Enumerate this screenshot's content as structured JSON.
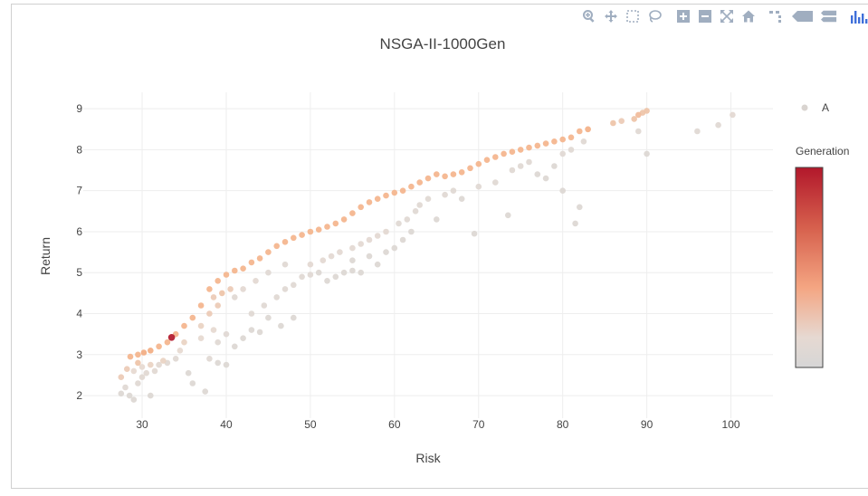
{
  "modebar": {
    "buttons": [
      "zoom-icon",
      "pan-icon",
      "box-select-icon",
      "lasso-select-icon",
      "zoom-in-icon",
      "zoom-out-icon",
      "autoscale-icon",
      "reset-axes-icon",
      "spike-lines-icon",
      "hover-closest-icon",
      "hover-compare-icon",
      "plotly-logo-icon"
    ],
    "color": "#a0aec0"
  },
  "chart_data": {
    "type": "scatter",
    "title": "NSGA-II-1000Gen",
    "xlabel": "Risk",
    "ylabel": "Return",
    "xlim": [
      23,
      105
    ],
    "ylim": [
      1.45,
      9.4
    ],
    "xticks": [
      30,
      40,
      50,
      60,
      70,
      80,
      90,
      100
    ],
    "yticks": [
      2,
      3,
      4,
      5,
      6,
      7,
      8,
      9
    ],
    "grid": true,
    "legend": {
      "entries": [
        "A"
      ],
      "placement": "top-right",
      "marker_color": "#d9d4d0"
    },
    "colorbar": {
      "title": "Generation",
      "colors": [
        "#b2182b",
        "#d6604d",
        "#f4a582",
        "#e6d9d2",
        "#d6d6d6"
      ]
    },
    "series": [
      {
        "name": "A",
        "frontier_hi": [
          [
            28.6,
            2.95,
            0.45
          ],
          [
            29.5,
            3.0,
            0.45
          ],
          [
            30.2,
            3.05,
            0.5
          ],
          [
            31.0,
            3.1,
            0.5
          ],
          [
            32.0,
            3.2,
            0.45
          ],
          [
            33.0,
            3.3,
            0.45
          ],
          [
            34.0,
            3.5,
            0.45
          ],
          [
            35.0,
            3.7,
            0.45
          ],
          [
            36.0,
            3.9,
            0.45
          ],
          [
            37.0,
            4.2,
            0.45
          ],
          [
            38.0,
            4.6,
            0.45
          ],
          [
            39.0,
            4.8,
            0.45
          ],
          [
            40.0,
            4.95,
            0.45
          ],
          [
            41.0,
            5.05,
            0.45
          ],
          [
            42.0,
            5.1,
            0.45
          ],
          [
            43.0,
            5.25,
            0.45
          ],
          [
            44.0,
            5.35,
            0.45
          ],
          [
            45.0,
            5.5,
            0.45
          ],
          [
            46.0,
            5.65,
            0.45
          ],
          [
            47.0,
            5.75,
            0.45
          ],
          [
            48.0,
            5.85,
            0.45
          ],
          [
            49.0,
            5.92,
            0.45
          ],
          [
            50.0,
            6.0,
            0.45
          ],
          [
            51.0,
            6.05,
            0.45
          ],
          [
            52.0,
            6.12,
            0.45
          ],
          [
            53.0,
            6.2,
            0.45
          ],
          [
            54.0,
            6.3,
            0.45
          ],
          [
            55.0,
            6.45,
            0.45
          ],
          [
            56.0,
            6.6,
            0.45
          ],
          [
            57.0,
            6.72,
            0.45
          ],
          [
            58.0,
            6.8,
            0.45
          ],
          [
            59.0,
            6.88,
            0.45
          ],
          [
            60.0,
            6.95,
            0.45
          ],
          [
            61.0,
            7.0,
            0.45
          ],
          [
            62.0,
            7.1,
            0.45
          ],
          [
            63.0,
            7.2,
            0.45
          ],
          [
            64.0,
            7.3,
            0.45
          ],
          [
            65.0,
            7.4,
            0.45
          ],
          [
            66.0,
            7.35,
            0.45
          ],
          [
            67.0,
            7.4,
            0.45
          ],
          [
            68.0,
            7.45,
            0.45
          ],
          [
            69.0,
            7.55,
            0.45
          ],
          [
            70.0,
            7.65,
            0.45
          ],
          [
            71.0,
            7.75,
            0.45
          ],
          [
            72.0,
            7.82,
            0.45
          ],
          [
            73.0,
            7.9,
            0.45
          ],
          [
            74.0,
            7.95,
            0.45
          ],
          [
            75.0,
            8.0,
            0.45
          ],
          [
            76.0,
            8.05,
            0.45
          ],
          [
            77.0,
            8.1,
            0.45
          ],
          [
            78.0,
            8.15,
            0.45
          ],
          [
            79.0,
            8.2,
            0.45
          ],
          [
            80.0,
            8.25,
            0.45
          ],
          [
            81.0,
            8.3,
            0.45
          ],
          [
            82.0,
            8.45,
            0.45
          ],
          [
            83.0,
            8.5,
            0.45
          ]
        ],
        "points": [
          [
            27.5,
            2.05,
            0.05
          ],
          [
            28.5,
            2.0,
            0.05
          ],
          [
            29.0,
            1.9,
            0.05
          ],
          [
            31.0,
            2.0,
            0.05
          ],
          [
            28.0,
            2.2,
            0.1
          ],
          [
            29.5,
            2.3,
            0.1
          ],
          [
            30.0,
            2.45,
            0.12
          ],
          [
            30.5,
            2.55,
            0.12
          ],
          [
            31.5,
            2.6,
            0.12
          ],
          [
            32.0,
            2.75,
            0.12
          ],
          [
            33.0,
            2.8,
            0.1
          ],
          [
            34.0,
            2.9,
            0.1
          ],
          [
            29.0,
            2.6,
            0.2
          ],
          [
            30.0,
            2.7,
            0.2
          ],
          [
            31.0,
            2.75,
            0.25
          ],
          [
            32.5,
            2.85,
            0.25
          ],
          [
            27.5,
            2.45,
            0.3
          ],
          [
            28.2,
            2.65,
            0.3
          ],
          [
            29.5,
            2.8,
            0.35
          ],
          [
            33.5,
            3.42,
            1.0
          ],
          [
            34.5,
            3.1,
            0.2
          ],
          [
            35.0,
            3.3,
            0.25
          ],
          [
            35.5,
            2.55,
            0.05
          ],
          [
            36.0,
            2.3,
            0.05
          ],
          [
            37.5,
            2.1,
            0.05
          ],
          [
            38.0,
            2.9,
            0.1
          ],
          [
            39.0,
            2.8,
            0.05
          ],
          [
            40.0,
            2.75,
            0.05
          ],
          [
            37.0,
            3.4,
            0.2
          ],
          [
            38.5,
            3.6,
            0.2
          ],
          [
            37.0,
            3.7,
            0.25
          ],
          [
            38.0,
            4.0,
            0.3
          ],
          [
            39.0,
            4.2,
            0.3
          ],
          [
            38.5,
            4.4,
            0.3
          ],
          [
            39.5,
            4.5,
            0.35
          ],
          [
            40.5,
            4.6,
            0.3
          ],
          [
            39.0,
            3.3,
            0.1
          ],
          [
            40.0,
            3.5,
            0.1
          ],
          [
            41.0,
            3.2,
            0.05
          ],
          [
            42.0,
            3.4,
            0.05
          ],
          [
            43.0,
            3.6,
            0.05
          ],
          [
            44.0,
            3.55,
            0.05
          ],
          [
            43.0,
            4.0,
            0.1
          ],
          [
            44.5,
            4.2,
            0.1
          ],
          [
            46.0,
            4.4,
            0.1
          ],
          [
            47.0,
            4.6,
            0.1
          ],
          [
            45.0,
            3.9,
            0.05
          ],
          [
            46.5,
            3.7,
            0.05
          ],
          [
            48.0,
            3.9,
            0.05
          ],
          [
            48.0,
            4.7,
            0.1
          ],
          [
            49.0,
            4.9,
            0.1
          ],
          [
            50.0,
            4.95,
            0.1
          ],
          [
            51.0,
            5.0,
            0.05
          ],
          [
            52.0,
            4.8,
            0.05
          ],
          [
            53.0,
            4.9,
            0.05
          ],
          [
            54.0,
            5.0,
            0.05
          ],
          [
            55.0,
            5.05,
            0.05
          ],
          [
            56.0,
            5.0,
            0.05
          ],
          [
            50.0,
            5.2,
            0.15
          ],
          [
            51.5,
            5.3,
            0.15
          ],
          [
            52.5,
            5.4,
            0.15
          ],
          [
            53.5,
            5.5,
            0.15
          ],
          [
            55.0,
            5.6,
            0.15
          ],
          [
            56.0,
            5.7,
            0.15
          ],
          [
            57.0,
            5.8,
            0.15
          ],
          [
            58.0,
            5.9,
            0.15
          ],
          [
            59.0,
            6.0,
            0.15
          ],
          [
            55.0,
            5.3,
            0.05
          ],
          [
            57.0,
            5.4,
            0.05
          ],
          [
            58.0,
            5.2,
            0.05
          ],
          [
            59.0,
            5.5,
            0.05
          ],
          [
            60.0,
            5.6,
            0.05
          ],
          [
            61.0,
            5.8,
            0.05
          ],
          [
            62.0,
            6.0,
            0.05
          ],
          [
            60.5,
            6.2,
            0.1
          ],
          [
            61.5,
            6.3,
            0.1
          ],
          [
            62.5,
            6.5,
            0.1
          ],
          [
            63.0,
            6.65,
            0.1
          ],
          [
            64.0,
            6.8,
            0.1
          ],
          [
            65.0,
            6.3,
            0.05
          ],
          [
            66.0,
            6.9,
            0.1
          ],
          [
            67.0,
            7.0,
            0.1
          ],
          [
            68.0,
            6.8,
            0.05
          ],
          [
            69.5,
            5.95,
            0.05
          ],
          [
            70.0,
            7.1,
            0.1
          ],
          [
            72.0,
            7.2,
            0.1
          ],
          [
            73.5,
            6.4,
            0.05
          ],
          [
            74.0,
            7.5,
            0.1
          ],
          [
            75.0,
            7.6,
            0.1
          ],
          [
            76.0,
            7.7,
            0.1
          ],
          [
            77.0,
            7.4,
            0.05
          ],
          [
            78.0,
            7.3,
            0.05
          ],
          [
            79.0,
            7.6,
            0.05
          ],
          [
            80.0,
            7.0,
            0.05
          ],
          [
            81.5,
            6.2,
            0.05
          ],
          [
            82.0,
            6.6,
            0.05
          ],
          [
            80.0,
            7.9,
            0.1
          ],
          [
            81.0,
            8.0,
            0.1
          ],
          [
            82.5,
            8.2,
            0.1
          ],
          [
            83.0,
            8.5,
            0.3
          ],
          [
            86.0,
            8.65,
            0.35
          ],
          [
            87.0,
            8.7,
            0.3
          ],
          [
            88.5,
            8.75,
            0.35
          ],
          [
            89.0,
            8.85,
            0.4
          ],
          [
            89.5,
            8.9,
            0.35
          ],
          [
            90.0,
            8.95,
            0.35
          ],
          [
            89.0,
            8.45,
            0.1
          ],
          [
            90.0,
            7.9,
            0.05
          ],
          [
            96.0,
            8.45,
            0.1
          ],
          [
            98.5,
            8.6,
            0.1
          ],
          [
            100.2,
            8.85,
            0.15
          ],
          [
            47.0,
            5.2,
            0.1
          ],
          [
            45.0,
            5.0,
            0.1
          ],
          [
            43.5,
            4.8,
            0.15
          ],
          [
            42.0,
            4.6,
            0.15
          ],
          [
            41.0,
            4.4,
            0.1
          ]
        ]
      }
    ]
  }
}
